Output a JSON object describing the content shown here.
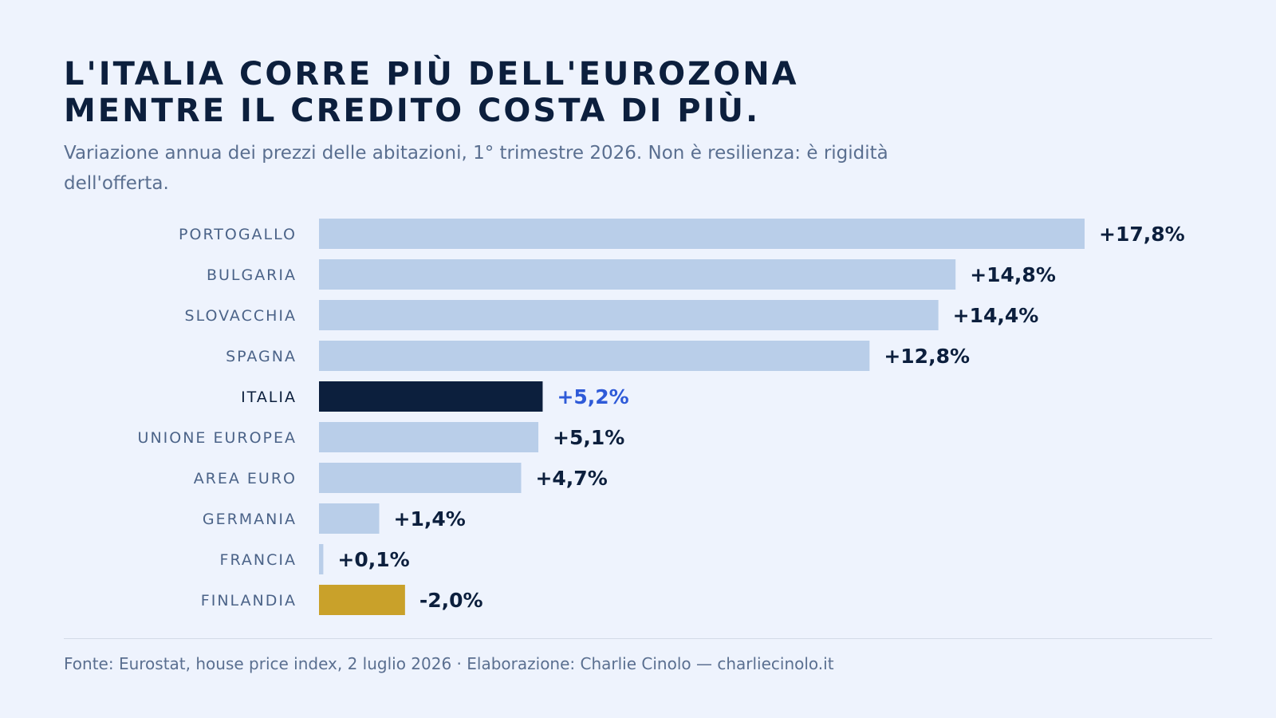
{
  "title": {
    "line1": "L'ITALIA CORRE PIÙ DELL'EUROZONA",
    "line2": "MENTRE IL CREDITO COSTA DI PIÙ."
  },
  "subtitle": "Variazione annua dei prezzi delle abitazioni, 1° trimestre 2026. Non è resilienza: è rigidità dell'offerta.",
  "footer": "Fonte: Eurostat, house price index, 2 luglio 2026 · Elaborazione: Charlie Cinolo — charliecinolo.it",
  "colors": {
    "bar_default": "#b9cee9",
    "bar_highlight": "#0c1f3d",
    "bar_negative": "#c9a12a",
    "label_default": "#4b6388",
    "label_highlight": "#0c1f3d",
    "value_default": "#0c1f3d",
    "value_highlight": "#2e5ad8"
  },
  "chart_data": {
    "type": "bar",
    "orientation": "horizontal",
    "categories": [
      "PORTOGALLO",
      "BULGARIA",
      "SLOVACCHIA",
      "SPAGNA",
      "ITALIA",
      "UNIONE EUROPEA",
      "AREA EURO",
      "GERMANIA",
      "FRANCIA",
      "FINLANDIA"
    ],
    "values": [
      17.8,
      14.8,
      14.4,
      12.8,
      5.2,
      5.1,
      4.7,
      1.4,
      0.1,
      -2.0
    ],
    "value_labels": [
      "+17,8%",
      "+14,8%",
      "+14,4%",
      "+12,8%",
      "+5,2%",
      "+5,1%",
      "+4,7%",
      "+1,4%",
      "+0,1%",
      "-2,0%"
    ],
    "highlight": "ITALIA",
    "xlim": [
      0,
      17.8
    ],
    "grid": false,
    "legend": "none",
    "xlabel": "",
    "ylabel": ""
  }
}
